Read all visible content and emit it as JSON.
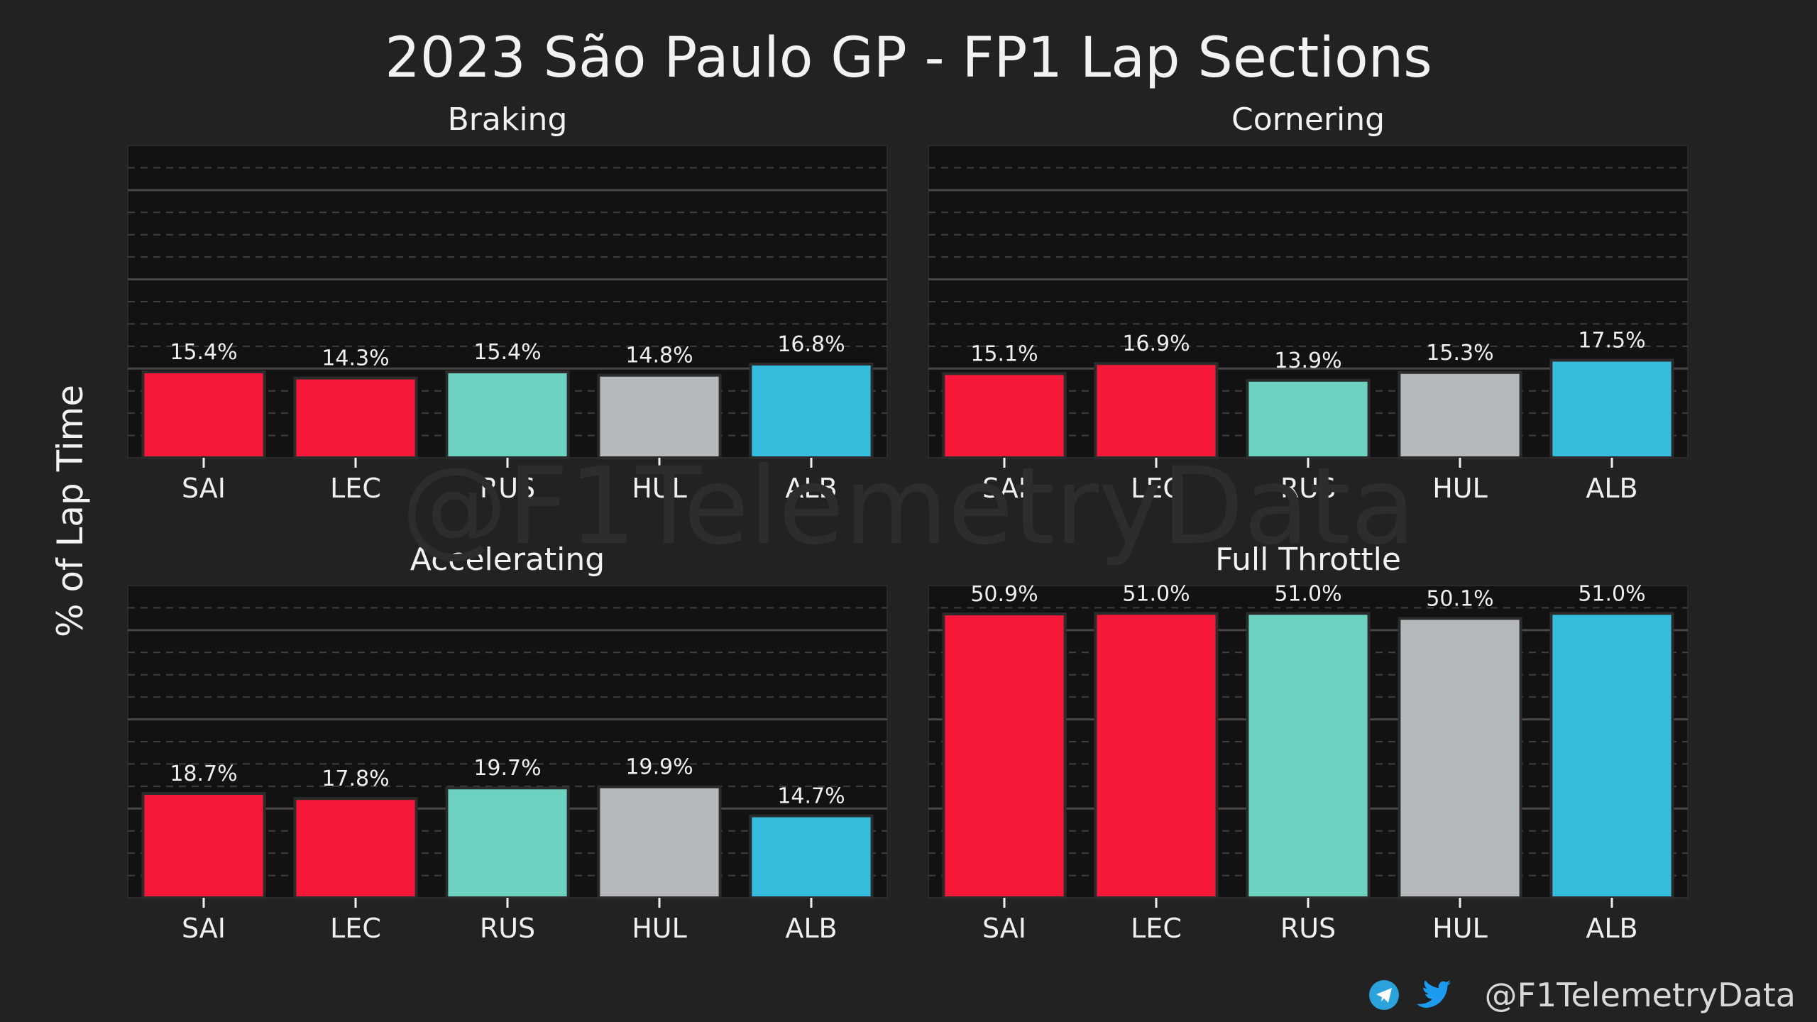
{
  "title": "2023 São Paulo GP - FP1 Lap Sections",
  "ylabel": "% of Lap Time",
  "watermark": "@F1TelemetryData",
  "footer": {
    "handle": "@F1TelemetryData",
    "icons": [
      "telegram-icon",
      "twitter-icon"
    ]
  },
  "colors": {
    "background": "#222222",
    "plot_bg": "#121212",
    "SAI": "#f8193a",
    "LEC": "#f8193a",
    "RUS": "#6dd3c0",
    "HUL": "#b5b9bc",
    "ALB": "#36bcdc",
    "telegram": "#2aa3dd",
    "twitter": "#1d9bf0"
  },
  "chart_data": [
    {
      "type": "bar",
      "title": "Braking",
      "categories": [
        "SAI",
        "LEC",
        "RUS",
        "HUL",
        "ALB"
      ],
      "values": [
        15.4,
        14.3,
        15.4,
        14.8,
        16.8
      ],
      "labels": [
        "15.4%",
        "14.3%",
        "15.4%",
        "14.8%",
        "16.8%"
      ],
      "ylim": [
        0,
        56
      ],
      "grid": true
    },
    {
      "type": "bar",
      "title": "Cornering",
      "categories": [
        "SAI",
        "LEC",
        "RUS",
        "HUL",
        "ALB"
      ],
      "values": [
        15.1,
        16.9,
        13.9,
        15.3,
        17.5
      ],
      "labels": [
        "15.1%",
        "16.9%",
        "13.9%",
        "15.3%",
        "17.5%"
      ],
      "ylim": [
        0,
        56
      ],
      "grid": true
    },
    {
      "type": "bar",
      "title": "Accelerating",
      "categories": [
        "SAI",
        "LEC",
        "RUS",
        "HUL",
        "ALB"
      ],
      "values": [
        18.7,
        17.8,
        19.7,
        19.9,
        14.7
      ],
      "labels": [
        "18.7%",
        "17.8%",
        "19.7%",
        "19.9%",
        "14.7%"
      ],
      "ylim": [
        0,
        56
      ],
      "grid": true
    },
    {
      "type": "bar",
      "title": "Full Throttle",
      "categories": [
        "SAI",
        "LEC",
        "RUS",
        "HUL",
        "ALB"
      ],
      "values": [
        50.9,
        51.0,
        51.0,
        50.1,
        51.0
      ],
      "labels": [
        "50.9%",
        "51.0%",
        "51.0%",
        "50.1%",
        "51.0%"
      ],
      "ylim": [
        0,
        56
      ],
      "grid": true
    }
  ]
}
